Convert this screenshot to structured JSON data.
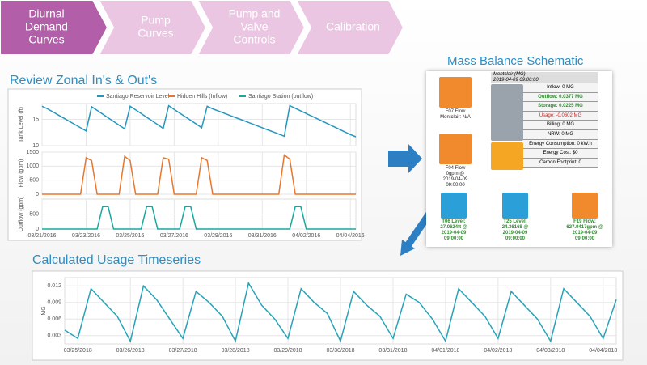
{
  "steps": [
    [
      "Diurnal",
      "Demand",
      "Curves"
    ],
    [
      "Pump",
      "Curves"
    ],
    [
      "Pump and",
      "Valve",
      "Controls"
    ],
    [
      "Calibration"
    ]
  ],
  "chart_data": [
    {
      "type": "line",
      "title": "Review Zonal In's & Out's",
      "ylabel": "Tank Level (ft)",
      "series": [
        {
          "name": "Santiago Reservoir Level",
          "color": "#2596be",
          "values": [
            17.5,
            17.0,
            16.4,
            15.8,
            15.2,
            14.6,
            14.0,
            13.4,
            12.8,
            17.4,
            16.7,
            16.0,
            15.3,
            14.6,
            13.9,
            13.2,
            17.5,
            16.8,
            16.1,
            15.4,
            14.7,
            14.0,
            13.3,
            17.6,
            16.9,
            16.2,
            15.5,
            14.8,
            14.1,
            13.4,
            17.5,
            17.0,
            16.6,
            16.2,
            15.8,
            15.4,
            15.0,
            14.6,
            14.2,
            13.8,
            13.4,
            13.0,
            12.6,
            12.2,
            11.8,
            17.6,
            17.1,
            16.6,
            16.1,
            15.6,
            15.1,
            14.6,
            14.1,
            13.6,
            13.1,
            12.6,
            12.1,
            11.7
          ]
        }
      ],
      "ylim": [
        10,
        18
      ],
      "yticks": [
        10,
        15
      ]
    },
    {
      "type": "line",
      "ylabel": "Flow (gpm)",
      "series": [
        {
          "name": "Hidden Hills (Inflow)",
          "color": "#e8772e",
          "values": [
            0,
            0,
            0,
            0,
            0,
            0,
            0,
            0,
            1300,
            1200,
            0,
            0,
            0,
            0,
            0,
            1350,
            1200,
            0,
            0,
            0,
            0,
            0,
            1300,
            1250,
            0,
            0,
            0,
            0,
            0,
            1300,
            1200,
            0,
            0,
            0,
            0,
            0,
            0,
            0,
            0,
            0,
            0,
            0,
            0,
            0,
            1400,
            1250,
            0,
            0,
            0,
            0,
            0,
            0,
            0,
            0,
            0,
            0,
            0,
            0
          ]
        }
      ],
      "ylim": [
        0,
        1500
      ],
      "yticks": [
        0,
        500,
        1000,
        1500
      ]
    },
    {
      "type": "line",
      "ylabel": "Outflow (gpm)",
      "series": [
        {
          "name": "Santiago Station (outflow)",
          "color": "#1aa79c",
          "values": [
            0,
            0,
            0,
            0,
            0,
            0,
            0,
            0,
            0,
            0,
            0,
            750,
            750,
            0,
            0,
            0,
            0,
            0,
            0,
            750,
            750,
            0,
            0,
            0,
            0,
            0,
            750,
            750,
            0,
            0,
            0,
            0,
            0,
            0,
            0,
            0,
            0,
            0,
            0,
            0,
            0,
            0,
            0,
            0,
            0,
            0,
            750,
            750,
            0,
            0,
            0,
            0,
            0,
            0,
            0,
            0,
            0,
            0
          ]
        }
      ],
      "ylim": [
        0,
        1000
      ],
      "yticks": [
        0,
        500
      ],
      "xticks": [
        {
          "value": 0,
          "label": "03/21/2016"
        },
        {
          "value": 8,
          "label": "03/23/2016"
        },
        {
          "value": 16,
          "label": "03/25/2016"
        },
        {
          "value": 24,
          "label": "03/27/2016"
        },
        {
          "value": 32,
          "label": "03/29/2016"
        },
        {
          "value": 40,
          "label": "03/31/2016"
        },
        {
          "value": 48,
          "label": "04/02/2016"
        },
        {
          "value": 56,
          "label": "04/04/2016"
        }
      ]
    },
    {
      "type": "line",
      "title": "Calculated Usage Timeseries",
      "ylabel": "MG",
      "color": "#27a3b8",
      "values": [
        0.004,
        0.0025,
        0.0115,
        0.009,
        0.0065,
        0.002,
        0.012,
        0.0095,
        0.006,
        0.0025,
        0.011,
        0.009,
        0.0065,
        0.002,
        0.0125,
        0.0085,
        0.006,
        0.0025,
        0.0115,
        0.009,
        0.007,
        0.002,
        0.011,
        0.0085,
        0.0065,
        0.0025,
        0.0105,
        0.009,
        0.006,
        0.002,
        0.0115,
        0.009,
        0.0065,
        0.0025,
        0.011,
        0.0085,
        0.006,
        0.002,
        0.0115,
        0.009,
        0.0065,
        0.0025,
        0.0095
      ],
      "ylim": [
        0.0015,
        0.0135
      ],
      "yticks": [
        0.003,
        0.006,
        0.009,
        0.012
      ],
      "xticks": [
        {
          "value": 1,
          "label": "03/25/2018"
        },
        {
          "value": 5,
          "label": "03/26/2018"
        },
        {
          "value": 9,
          "label": "03/27/2018"
        },
        {
          "value": 13,
          "label": "03/28/2018"
        },
        {
          "value": 17,
          "label": "03/29/2018"
        },
        {
          "value": 21,
          "label": "03/30/2018"
        },
        {
          "value": 25,
          "label": "03/31/2018"
        },
        {
          "value": 29,
          "label": "04/01/2018"
        },
        {
          "value": 33,
          "label": "04/02/2018"
        },
        {
          "value": 37,
          "label": "04/03/2018"
        },
        {
          "value": 41,
          "label": "04/04/2018"
        }
      ]
    }
  ],
  "schematic": {
    "title": "Mass Balance Schematic",
    "zone": "Montclair (MG)",
    "time": "2019-04-09 09:00:00",
    "rows": [
      "Inflow: 0 MG",
      "Outflow: 0.0377 MG",
      "Storage: 0.0225 MG",
      "Usage: -0.0602 MG",
      "Billing: 0 MG",
      "NRW: 0 MG",
      "Energy Consumption: 0 kW.h",
      "Energy Cost: $0",
      "Carbon Footprint: 0"
    ],
    "nodes": [
      [
        "F07 Flow",
        "Montclair: N/A"
      ],
      [
        "F04 Flow",
        "0gpm @",
        "2019-04-09",
        "09:00:00"
      ],
      [
        "T06 Level:",
        "27.0624ft @",
        "2019-04-09",
        "09:00:00"
      ],
      [
        "T25 Level:",
        "24.36168 @",
        "2019-04-09",
        "09:00:00"
      ],
      [
        "F19 Flow:",
        "627.9417gpm @",
        "2019-04-09",
        "09:00:00"
      ]
    ]
  }
}
